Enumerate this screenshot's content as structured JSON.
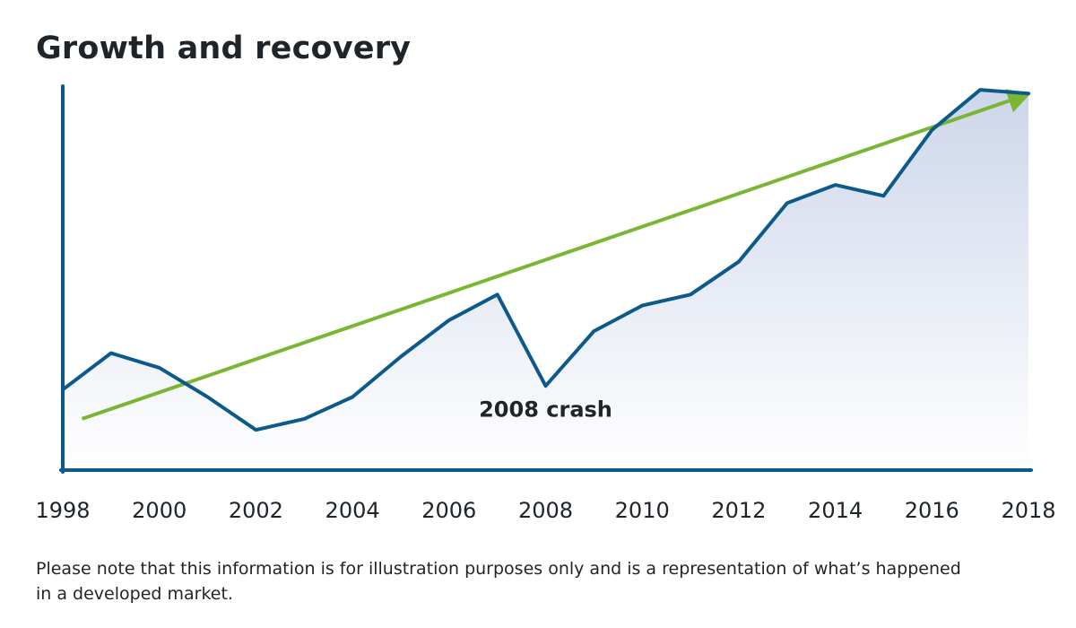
{
  "chart_data": {
    "type": "line",
    "title": "Growth and recovery",
    "x": [
      1998,
      1999,
      2000,
      2001,
      2002,
      2003,
      2004,
      2005,
      2006,
      2007,
      2008,
      2009,
      2010,
      2011,
      2012,
      2013,
      2014,
      2015,
      2016,
      2017,
      2018
    ],
    "x_tick_labels": [
      "1998",
      "2000",
      "2002",
      "2004",
      "2006",
      "2008",
      "2010",
      "2012",
      "2014",
      "2016",
      "2018"
    ],
    "xlim": [
      1998,
      2018
    ],
    "ylim": [
      0,
      105
    ],
    "y_axis_labels_shown": false,
    "grid": false,
    "series": [
      {
        "values": [
          22,
          32,
          28,
          20,
          11,
          14,
          20,
          31,
          41,
          48,
          23,
          38,
          45,
          48,
          57,
          73,
          78,
          75,
          93,
          104,
          103
        ],
        "color": "#0b5a8a",
        "area_fill": true
      }
    ],
    "trend": {
      "x": [
        1998.4,
        2017.6
      ],
      "values": [
        14,
        101
      ],
      "color": "#7ab534",
      "arrow": true
    },
    "annotations": [
      {
        "text": "2008 crash",
        "x": 2008,
        "y": 17
      }
    ]
  },
  "footnote": "Please note that this information is for illustration purposes only and is a representation of what’s happened in a developed market.",
  "colors": {
    "axis": "#0b5a8a",
    "line": "#0b5a8a",
    "trend": "#7ab534",
    "area_top": "#cdd6ea",
    "area_bottom": "#ffffff",
    "text": "#1f2428"
  }
}
